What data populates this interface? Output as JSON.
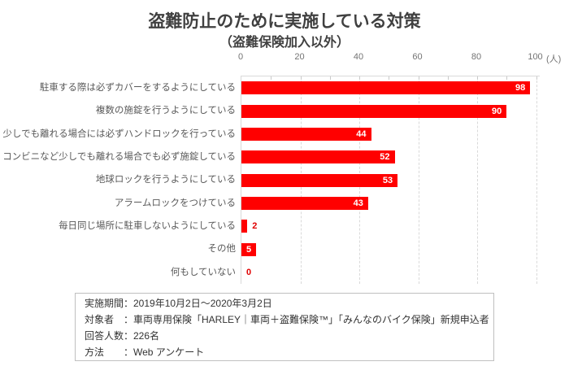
{
  "title": "盗難防止のために実施している対策",
  "subtitle": "（盗難保険加入以外）",
  "chart_data": {
    "type": "bar",
    "orientation": "horizontal",
    "title": "盗難防止のために実施している対策",
    "subtitle": "（盗難保険加入以外）",
    "categories": [
      "駐車する際は必ずカバーをするようにしている",
      "複数の施錠を行うようにしている",
      "少しでも離れる場合には必ずハンドロックを行っている",
      "コンビニなど少しでも離れる場合でも必ず施錠している",
      "地球ロックを行うようにしている",
      "アラームロックをつけている",
      "毎日同じ場所に駐車しないようにしている",
      "その他",
      "何もしていない"
    ],
    "values": [
      98,
      90,
      44,
      52,
      53,
      43,
      2,
      5,
      0
    ],
    "xlim": [
      0,
      100
    ],
    "x_ticks": [
      0,
      20,
      40,
      60,
      80,
      100
    ],
    "x_minor_tick_step": 10,
    "x_unit": "(人)",
    "grid": "vertical dashed lines every 20, axis on top",
    "legend": "none",
    "data_labels": "at bar end; white inside bar for values >= 5, red outside bar for smaller values"
  },
  "colors": {
    "bar": "#ff0000",
    "value_label_inside": "#ffffff",
    "value_label_outside": "#e00000",
    "title_text": "#404040",
    "category_label": "#595959",
    "axis_label": "#737373",
    "grid_line": "#d9d9d9",
    "axis_line": "#d9d9d9",
    "note_border": "#c0c0c0",
    "note_text": "#333333",
    "background": "#ffffff"
  },
  "survey_info": {
    "lines": [
      "実施期間：2019年10月2日～2020年3月2日",
      "対象者　：車両専用保険「HARLEY｜車両＋盗難保険™」「みんなのバイク保険」新規申込者",
      "回答人数：226名",
      "方法　　：Web アンケート"
    ]
  }
}
